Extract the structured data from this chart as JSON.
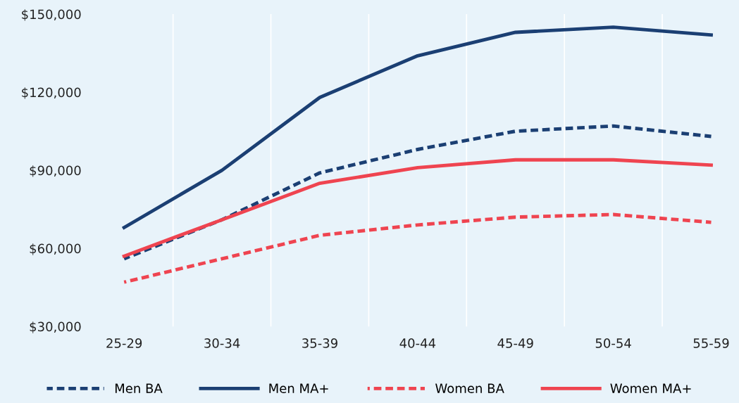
{
  "chart_data": {
    "type": "line",
    "categories": [
      "25-29",
      "30-34",
      "35-39",
      "40-44",
      "45-49",
      "50-54",
      "55-59"
    ],
    "series": [
      {
        "name": "Men BA",
        "color": "#1b3f73",
        "line_style": "dashed",
        "values": [
          56000,
          71000,
          89000,
          98000,
          105000,
          107000,
          103000
        ]
      },
      {
        "name": "Men MA+",
        "color": "#1b3f73",
        "line_style": "solid",
        "values": [
          68000,
          90000,
          118000,
          134000,
          143000,
          145000,
          142000
        ]
      },
      {
        "name": "Women BA",
        "color": "#ef4450",
        "line_style": "dashed",
        "values": [
          47000,
          56000,
          65000,
          69000,
          72000,
          73000,
          70000
        ]
      },
      {
        "name": "Women MA+",
        "color": "#ef4450",
        "line_style": "solid",
        "values": [
          57000,
          71000,
          85000,
          91000,
          94000,
          94000,
          92000
        ]
      }
    ],
    "ylim": [
      30000,
      150000
    ],
    "yticks": [
      {
        "value": 30000,
        "label": "$30,000"
      },
      {
        "value": 60000,
        "label": "$60,000"
      },
      {
        "value": 90000,
        "label": "$90,000"
      },
      {
        "value": 120000,
        "label": "$120,000"
      },
      {
        "value": 150000,
        "label": "$150,000"
      }
    ],
    "grid": "x",
    "legend": "bottom",
    "marker": "none"
  }
}
